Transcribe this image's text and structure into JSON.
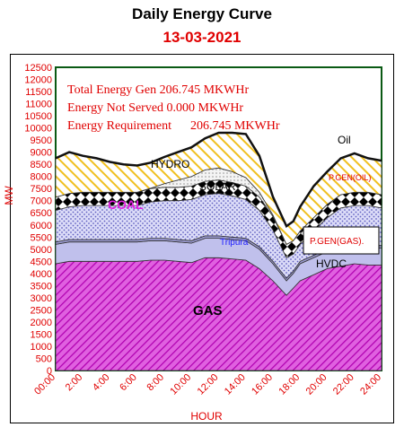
{
  "chart_data": {
    "type": "area",
    "title": "Daily Energy Curve",
    "subtitle": "13-03-2021",
    "xlabel": "HOUR",
    "ylabel": "MW",
    "x_ticks": [
      "00:00",
      "2:00",
      "4:00",
      "6:00",
      "8:00",
      "10:00",
      "12:00",
      "14:00",
      "16:00",
      "18:00",
      "20:00",
      "22:00",
      "24:00"
    ],
    "y_ticks": [
      0,
      500,
      1000,
      1500,
      2000,
      2500,
      3000,
      3500,
      4000,
      4500,
      5000,
      5500,
      6000,
      6500,
      7000,
      7500,
      8000,
      8500,
      9000,
      9500,
      10000,
      10500,
      11000,
      11500,
      12000,
      12500
    ],
    "xlim": [
      0,
      24
    ],
    "ylim": [
      0,
      12500
    ],
    "grid": false,
    "annotations": [
      "Total Energy Gen 206.745 MKWHr",
      "Energy Not Served 0.000 MKWHr",
      "Energy Requirement      206.745 MKWHr"
    ],
    "x": [
      0,
      1,
      2,
      3,
      4,
      5,
      6,
      7,
      8,
      9,
      10,
      11,
      12,
      13,
      14,
      15,
      16,
      17,
      17.5,
      18,
      19,
      20,
      21,
      22,
      23,
      24
    ],
    "series": [
      {
        "name": "GAS",
        "color": "#cc33cc",
        "values": [
          4400,
          4500,
          4500,
          4500,
          4500,
          4500,
          4500,
          4550,
          4550,
          4500,
          4450,
          4650,
          4650,
          4600,
          4550,
          4200,
          3700,
          3100,
          3400,
          3700,
          3950,
          4200,
          4300,
          4400,
          4350,
          4350
        ]
      },
      {
        "name": "HVDC",
        "color": "#c8c8f0",
        "values": [
          800,
          800,
          800,
          800,
          800,
          800,
          800,
          800,
          800,
          800,
          800,
          800,
          800,
          800,
          800,
          800,
          700,
          600,
          600,
          700,
          700,
          700,
          700,
          700,
          700,
          700
        ]
      },
      {
        "name": "Tripura",
        "color": "#9090c0",
        "values": [
          100,
          100,
          100,
          100,
          100,
          100,
          100,
          100,
          100,
          100,
          100,
          100,
          100,
          100,
          100,
          100,
          100,
          100,
          100,
          100,
          100,
          100,
          100,
          100,
          100,
          100
        ]
      },
      {
        "name": "P.GEN(GAS).",
        "color": "#d8dcf8",
        "values": [
          1300,
          1350,
          1400,
          1400,
          1400,
          1400,
          1400,
          1500,
          1550,
          1600,
          1700,
          1700,
          1750,
          1700,
          1600,
          1500,
          1300,
          850,
          700,
          700,
          1000,
          1300,
          1600,
          1600,
          1650,
          1550
        ]
      },
      {
        "name": "COAL",
        "color": "#ffffff",
        "values": [
          550,
          550,
          550,
          550,
          550,
          550,
          550,
          550,
          550,
          550,
          550,
          550,
          550,
          550,
          550,
          550,
          550,
          550,
          550,
          550,
          550,
          550,
          550,
          550,
          550,
          550
        ]
      },
      {
        "name": "SOLAR",
        "color": "#e8e8e8",
        "values": [
          0,
          0,
          0,
          0,
          0,
          0,
          0,
          20,
          150,
          300,
          400,
          470,
          500,
          450,
          350,
          200,
          60,
          0,
          0,
          0,
          0,
          0,
          0,
          0,
          0,
          0
        ]
      },
      {
        "name": "HYDRO",
        "color": "#f5d030",
        "values": [
          1600,
          1700,
          1500,
          1400,
          1250,
          1150,
          1100,
          1050,
          1100,
          1150,
          1200,
          1300,
          1450,
          1600,
          1800,
          1500,
          750,
          750,
          800,
          1000,
          1300,
          1350,
          1500,
          1600,
          1400,
          1400
        ]
      },
      {
        "name": "P.GEN(OIL)",
        "color": "#f5d030",
        "values": [
          0,
          0,
          0,
          0,
          0,
          0,
          0,
          0,
          0,
          0,
          0,
          0,
          0,
          0,
          0,
          0,
          0,
          0,
          0,
          0,
          0,
          0,
          0,
          0,
          0,
          0
        ]
      },
      {
        "name": "Oil",
        "color": "#ffffff",
        "values": [
          0,
          0,
          0,
          0,
          0,
          0,
          0,
          0,
          0,
          0,
          0,
          0,
          0,
          0,
          0,
          0,
          0,
          0,
          0,
          0,
          0,
          0,
          0,
          0,
          0,
          0
        ]
      }
    ],
    "series_labels": [
      "GAS",
      "HVDC",
      "Tripura",
      "P.GEN(GAS).",
      "COAL",
      "SOLAR",
      "HYDRO",
      "P.GEN(OIL)",
      "Oil"
    ]
  },
  "colors": {
    "axis_text": "#e00000",
    "plot_border": "#0a5a14",
    "gas": "#cc33cc",
    "hydro": "#f5d030"
  }
}
